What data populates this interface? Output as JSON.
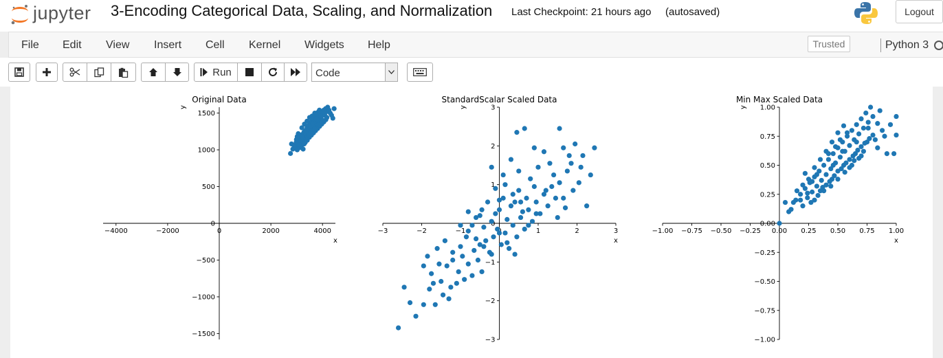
{
  "header": {
    "logo_text": "jupyter",
    "notebook_title": "3-Encoding Categorical Data, Scaling, and Normalization",
    "checkpoint": "Last Checkpoint: 21 hours ago",
    "autosave_status": "(autosaved)",
    "logout_label": "Logout"
  },
  "menubar": {
    "items": [
      "File",
      "Edit",
      "View",
      "Insert",
      "Cell",
      "Kernel",
      "Widgets",
      "Help"
    ],
    "trusted_label": "Trusted",
    "kernel_name": "Python 3"
  },
  "toolbar": {
    "run_label": "Run",
    "cell_type": "Code",
    "icons": [
      "save-icon",
      "plus-icon",
      "scissors-icon",
      "copy-icon",
      "paste-icon",
      "arrow-up-icon",
      "arrow-down-icon",
      "step-forward-icon",
      "stop-icon",
      "restart-icon",
      "fast-forward-icon",
      "keyboard-icon"
    ]
  },
  "chart_data": [
    {
      "type": "scatter",
      "title": "Original Data",
      "xlabel": "x",
      "ylabel": "y",
      "xlim": [
        -4500,
        4500
      ],
      "ylim": [
        -1580,
        1580
      ],
      "xticks": [
        -4000,
        -2000,
        0,
        2000,
        4000
      ],
      "xtick_labels": [
        "−4000",
        "−2000",
        "0",
        "2000",
        "4000"
      ],
      "yticks": [
        -1500,
        -1000,
        -500,
        0,
        500,
        1000,
        1500
      ],
      "ytick_labels": [
        "−1500",
        "−1000",
        "−500",
        "0",
        "500",
        "1000",
        "1500"
      ],
      "grid": false,
      "points": [
        [
          2760,
          950
        ],
        [
          2800,
          1080
        ],
        [
          2850,
          1010
        ],
        [
          2900,
          1060
        ],
        [
          2950,
          1040
        ],
        [
          2980,
          1100
        ],
        [
          3020,
          1000
        ],
        [
          3050,
          1120
        ],
        [
          3080,
          1060
        ],
        [
          3100,
          1150
        ],
        [
          3120,
          1030
        ],
        [
          3150,
          1190
        ],
        [
          3170,
          1090
        ],
        [
          3200,
          1130
        ],
        [
          3220,
          1210
        ],
        [
          3240,
          1080
        ],
        [
          3260,
          1160
        ],
        [
          3280,
          1240
        ],
        [
          3300,
          1120
        ],
        [
          3320,
          1190
        ],
        [
          3340,
          1260
        ],
        [
          3360,
          1150
        ],
        [
          3380,
          1220
        ],
        [
          3400,
          1300
        ],
        [
          3420,
          1180
        ],
        [
          3440,
          1250
        ],
        [
          3460,
          1330
        ],
        [
          3480,
          1210
        ],
        [
          3500,
          1280
        ],
        [
          3520,
          1360
        ],
        [
          3540,
          1240
        ],
        [
          3560,
          1310
        ],
        [
          3580,
          1390
        ],
        [
          3600,
          1270
        ],
        [
          3620,
          1340
        ],
        [
          3640,
          1420
        ],
        [
          3660,
          1300
        ],
        [
          3680,
          1370
        ],
        [
          3700,
          1450
        ],
        [
          3720,
          1330
        ],
        [
          3740,
          1400
        ],
        [
          3760,
          1480
        ],
        [
          3780,
          1360
        ],
        [
          3800,
          1430
        ],
        [
          3820,
          1510
        ],
        [
          3840,
          1390
        ],
        [
          3860,
          1460
        ],
        [
          3880,
          1540
        ],
        [
          3900,
          1420
        ],
        [
          3920,
          1490
        ],
        [
          3950,
          1450
        ],
        [
          3980,
          1520
        ],
        [
          4010,
          1480
        ],
        [
          4050,
          1540
        ],
        [
          4080,
          1500
        ],
        [
          4120,
          1560
        ],
        [
          4160,
          1520
        ],
        [
          4200,
          1580
        ],
        [
          4250,
          1540
        ],
        [
          4300,
          1500
        ],
        [
          4350,
          1470
        ],
        [
          4400,
          1430
        ],
        [
          4450,
          1560
        ],
        [
          3180,
          1050
        ],
        [
          3250,
          1010
        ],
        [
          3330,
          1100
        ],
        [
          3410,
          1130
        ],
        [
          3490,
          1170
        ],
        [
          3570,
          1200
        ],
        [
          3650,
          1230
        ],
        [
          3730,
          1260
        ],
        [
          3810,
          1290
        ],
        [
          3890,
          1320
        ],
        [
          3970,
          1350
        ],
        [
          4050,
          1380
        ],
        [
          4130,
          1410
        ],
        [
          3130,
          1120
        ],
        [
          3210,
          1180
        ],
        [
          3290,
          1080
        ],
        [
          3370,
          1260
        ],
        [
          3450,
          1200
        ],
        [
          3530,
          1320
        ],
        [
          3610,
          1360
        ],
        [
          3690,
          1280
        ],
        [
          3770,
          1420
        ],
        [
          3850,
          1340
        ],
        [
          3930,
          1460
        ],
        [
          4010,
          1400
        ],
        [
          4090,
          1470
        ],
        [
          4170,
          1440
        ],
        [
          3020,
          1180
        ],
        [
          3100,
          1070
        ],
        [
          2990,
          1140
        ],
        [
          3060,
          1220
        ],
        [
          3300,
          1350
        ],
        [
          3200,
          1300
        ],
        [
          3500,
          1440
        ],
        [
          3400,
          1390
        ],
        [
          3700,
          1500
        ],
        [
          3600,
          1460
        ]
      ]
    },
    {
      "type": "scatter",
      "title": "StandardScalar Scaled Data",
      "xlabel": "x",
      "ylabel": "y",
      "xlim": [
        -3,
        3
      ],
      "ylim": [
        -3,
        3
      ],
      "xticks": [
        -3,
        -2,
        -1,
        0,
        1,
        2,
        3
      ],
      "xtick_labels": [
        "−3",
        "−2",
        "−1",
        "0",
        "1",
        "2",
        "3"
      ],
      "yticks": [
        -3,
        -2,
        -1,
        0,
        1,
        2,
        3
      ],
      "ytick_labels": [
        "−3",
        "−2",
        "−1",
        "0",
        "1",
        "2",
        "3"
      ],
      "grid": false,
      "points": [
        [
          -2.6,
          -2.7
        ],
        [
          -2.3,
          -2.05
        ],
        [
          -2.15,
          -2.4
        ],
        [
          -1.95,
          -2.1
        ],
        [
          -1.8,
          -1.7
        ],
        [
          -1.95,
          -1.1
        ],
        [
          -1.75,
          -1.3
        ],
        [
          -1.5,
          -1.5
        ],
        [
          -1.65,
          -2.1
        ],
        [
          -1.45,
          -1.85
        ],
        [
          -1.3,
          -1.95
        ],
        [
          -1.55,
          -1.05
        ],
        [
          -1.35,
          -1.1
        ],
        [
          -1.25,
          -1.65
        ],
        [
          -1.1,
          -1.55
        ],
        [
          -1.2,
          -0.95
        ],
        [
          -1.05,
          -1.25
        ],
        [
          -0.9,
          -1.45
        ],
        [
          -0.95,
          -0.85
        ],
        [
          -0.8,
          -1.05
        ],
        [
          -0.7,
          -1.35
        ],
        [
          -0.65,
          -0.7
        ],
        [
          -0.55,
          -0.95
        ],
        [
          -0.45,
          -1.25
        ],
        [
          -0.5,
          -0.55
        ],
        [
          -0.35,
          -0.45
        ],
        [
          -0.25,
          -0.75
        ],
        [
          -0.15,
          -0.35
        ],
        [
          -0.05,
          -0.15
        ],
        [
          0.05,
          -0.55
        ],
        [
          0.15,
          -0.25
        ],
        [
          0.25,
          -0.65
        ],
        [
          0.35,
          -0.05
        ],
        [
          0.45,
          -0.35
        ],
        [
          0.55,
          0.15
        ],
        [
          0.65,
          -0.15
        ],
        [
          0.75,
          0.35
        ],
        [
          0.85,
          0.05
        ],
        [
          0.95,
          0.55
        ],
        [
          1.05,
          0.25
        ],
        [
          1.15,
          0.75
        ],
        [
          1.25,
          0.45
        ],
        [
          1.35,
          0.95
        ],
        [
          1.45,
          0.65
        ],
        [
          1.55,
          1.05
        ],
        [
          1.65,
          0.65
        ],
        [
          1.75,
          1.35
        ],
        [
          1.85,
          1.55
        ],
        [
          2.05,
          1.05
        ],
        [
          2.15,
          1.75
        ],
        [
          2.25,
          0.45
        ],
        [
          2.35,
          1.25
        ],
        [
          2.45,
          1.95
        ],
        [
          -0.2,
          1.45
        ],
        [
          0.1,
          1.25
        ],
        [
          0.3,
          1.65
        ],
        [
          0.45,
          2.35
        ],
        [
          0.65,
          2.45
        ],
        [
          0.9,
          1.95
        ],
        [
          1.15,
          1.85
        ],
        [
          1.3,
          1.55
        ],
        [
          1.55,
          2.45
        ],
        [
          1.65,
          1.95
        ],
        [
          1.8,
          1.75
        ],
        [
          1.95,
          2.05
        ],
        [
          0.5,
          1.35
        ],
        [
          0.8,
          1.15
        ],
        [
          1.0,
          1.45
        ],
        [
          1.2,
          0.85
        ],
        [
          1.4,
          1.25
        ],
        [
          -0.45,
          0.35
        ],
        [
          -0.3,
          0.55
        ],
        [
          -0.1,
          0.25
        ],
        [
          0.1,
          0.65
        ],
        [
          0.3,
          0.45
        ],
        [
          0.5,
          0.85
        ],
        [
          0.7,
          0.65
        ],
        [
          0.9,
          0.95
        ],
        [
          -0.6,
          0.15
        ],
        [
          -0.4,
          -0.1
        ],
        [
          -0.2,
          0.05
        ],
        [
          0.0,
          0.35
        ],
        [
          0.2,
          0.1
        ],
        [
          0.4,
          0.55
        ],
        [
          0.6,
          0.3
        ],
        [
          -0.8,
          -0.2
        ],
        [
          -0.6,
          -0.4
        ],
        [
          -0.4,
          -0.6
        ],
        [
          -0.2,
          -0.8
        ],
        [
          0.0,
          -0.25
        ],
        [
          0.2,
          -0.5
        ],
        [
          0.4,
          -0.8
        ],
        [
          -1.0,
          -0.6
        ],
        [
          -0.85,
          -0.35
        ],
        [
          -0.7,
          -0.05
        ],
        [
          -0.5,
          0.2
        ],
        [
          -1.4,
          -0.45
        ],
        [
          -1.2,
          -0.75
        ],
        [
          -1.0,
          -0.05
        ],
        [
          -0.8,
          0.3
        ],
        [
          1.5,
          0.15
        ],
        [
          1.7,
          0.4
        ],
        [
          1.9,
          0.85
        ],
        [
          2.1,
          1.45
        ],
        [
          0.0,
          0.6
        ],
        [
          -0.1,
          0.9
        ],
        [
          0.15,
          1.0
        ],
        [
          0.35,
          0.75
        ],
        [
          0.55,
          0.55
        ],
        [
          0.75,
          -0.05
        ],
        [
          0.95,
          0.25
        ],
        [
          -1.7,
          -1.55
        ],
        [
          -2.45,
          -1.65
        ],
        [
          -1.85,
          -0.85
        ],
        [
          -1.6,
          -0.65
        ]
      ]
    },
    {
      "type": "scatter",
      "title": "Min Max Scaled Data",
      "xlabel": "x",
      "ylabel": "y",
      "xlim": [
        -1,
        1
      ],
      "ylim": [
        -1,
        1
      ],
      "xticks": [
        -1.0,
        -0.75,
        -0.5,
        -0.25,
        0.0,
        0.25,
        0.5,
        0.75,
        1.0
      ],
      "xtick_labels": [
        "−1.00",
        "−0.75",
        "−0.50",
        "−0.25",
        "0.00",
        "0.25",
        "0.50",
        "0.75",
        "1.00"
      ],
      "yticks": [
        -1.0,
        -0.75,
        -0.5,
        -0.25,
        0.0,
        0.25,
        0.5,
        0.75,
        1.0
      ],
      "ytick_labels": [
        "−1.00",
        "−0.75",
        "−0.50",
        "−0.25",
        "0.00",
        "0.25",
        "0.50",
        "0.75",
        "1.00"
      ],
      "grid": false,
      "points": [
        [
          0.0,
          0.0
        ],
        [
          0.05,
          0.18
        ],
        [
          0.1,
          0.12
        ],
        [
          0.14,
          0.2
        ],
        [
          0.18,
          0.25
        ],
        [
          0.2,
          0.15
        ],
        [
          0.22,
          0.3
        ],
        [
          0.24,
          0.22
        ],
        [
          0.26,
          0.35
        ],
        [
          0.28,
          0.27
        ],
        [
          0.3,
          0.4
        ],
        [
          0.32,
          0.32
        ],
        [
          0.34,
          0.45
        ],
        [
          0.36,
          0.37
        ],
        [
          0.38,
          0.5
        ],
        [
          0.4,
          0.42
        ],
        [
          0.42,
          0.55
        ],
        [
          0.44,
          0.47
        ],
        [
          0.46,
          0.6
        ],
        [
          0.48,
          0.52
        ],
        [
          0.5,
          0.65
        ],
        [
          0.52,
          0.57
        ],
        [
          0.54,
          0.7
        ],
        [
          0.56,
          0.62
        ],
        [
          0.58,
          0.75
        ],
        [
          0.6,
          0.67
        ],
        [
          0.62,
          0.8
        ],
        [
          0.64,
          0.72
        ],
        [
          0.66,
          0.85
        ],
        [
          0.68,
          0.77
        ],
        [
          0.7,
          0.9
        ],
        [
          0.72,
          0.82
        ],
        [
          0.74,
          0.95
        ],
        [
          0.76,
          0.87
        ],
        [
          0.78,
          1.0
        ],
        [
          0.8,
          0.92
        ],
        [
          0.82,
          0.72
        ],
        [
          0.84,
          0.65
        ],
        [
          0.86,
          0.97
        ],
        [
          0.88,
          0.8
        ],
        [
          0.9,
          0.75
        ],
        [
          0.92,
          0.6
        ],
        [
          0.95,
          0.85
        ],
        [
          0.98,
          0.6
        ],
        [
          1.0,
          0.92
        ],
        [
          1.0,
          0.76
        ],
        [
          0.3,
          0.2
        ],
        [
          0.35,
          0.28
        ],
        [
          0.4,
          0.33
        ],
        [
          0.45,
          0.38
        ],
        [
          0.5,
          0.45
        ],
        [
          0.55,
          0.5
        ],
        [
          0.6,
          0.55
        ],
        [
          0.65,
          0.6
        ],
        [
          0.7,
          0.66
        ],
        [
          0.75,
          0.7
        ],
        [
          0.25,
          0.38
        ],
        [
          0.3,
          0.48
        ],
        [
          0.35,
          0.55
        ],
        [
          0.4,
          0.62
        ],
        [
          0.45,
          0.7
        ],
        [
          0.5,
          0.78
        ],
        [
          0.55,
          0.84
        ],
        [
          0.2,
          0.33
        ],
        [
          0.15,
          0.28
        ],
        [
          0.12,
          0.18
        ],
        [
          0.08,
          0.1
        ],
        [
          0.27,
          0.18
        ],
        [
          0.33,
          0.24
        ],
        [
          0.37,
          0.31
        ],
        [
          0.43,
          0.36
        ],
        [
          0.47,
          0.41
        ],
        [
          0.53,
          0.47
        ],
        [
          0.57,
          0.52
        ],
        [
          0.63,
          0.58
        ],
        [
          0.67,
          0.63
        ],
        [
          0.73,
          0.69
        ],
        [
          0.77,
          0.73
        ],
        [
          0.42,
          0.6
        ],
        [
          0.48,
          0.66
        ],
        [
          0.52,
          0.72
        ],
        [
          0.58,
          0.78
        ],
        [
          0.62,
          0.5
        ],
        [
          0.68,
          0.56
        ],
        [
          0.72,
          0.62
        ],
        [
          0.38,
          0.28
        ],
        [
          0.44,
          0.32
        ],
        [
          0.5,
          0.38
        ],
        [
          0.56,
          0.44
        ],
        [
          0.6,
          0.48
        ],
        [
          0.64,
          0.54
        ],
        [
          0.7,
          0.58
        ],
        [
          0.22,
          0.43
        ],
        [
          0.28,
          0.36
        ],
        [
          0.32,
          0.42
        ],
        [
          0.24,
          0.26
        ],
        [
          0.18,
          0.2
        ],
        [
          0.46,
          0.5
        ],
        [
          0.54,
          0.62
        ],
        [
          0.66,
          0.7
        ],
        [
          0.76,
          0.82
        ],
        [
          0.8,
          0.76
        ],
        [
          0.84,
          0.86
        ]
      ]
    }
  ]
}
